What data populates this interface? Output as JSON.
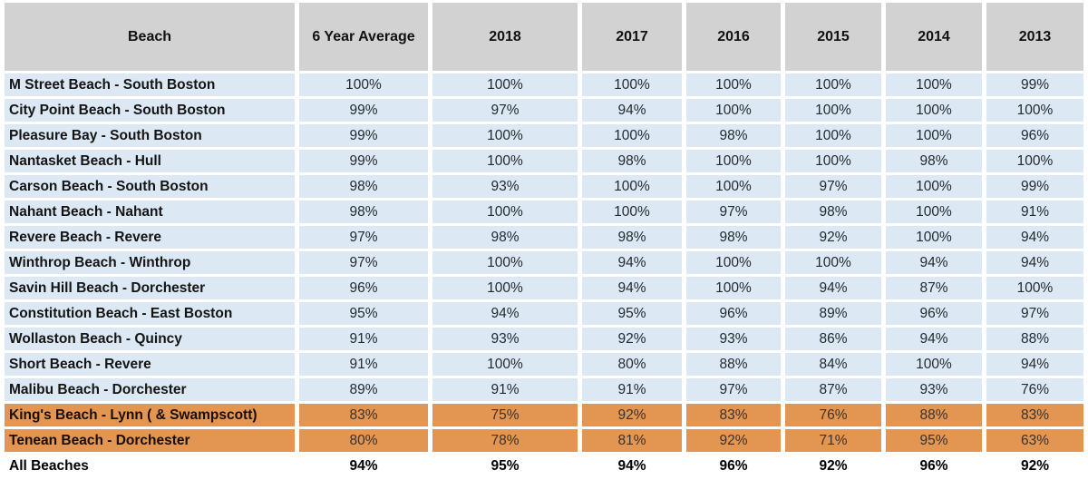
{
  "colors": {
    "header_bg": "#d2d2d2",
    "row_bg": "#dce9f4",
    "highlight_bg": "#e39552",
    "total_bg": "#ffffff"
  },
  "chart_data": {
    "type": "table",
    "columns": [
      "Beach",
      "6 Year Average",
      "2018",
      "2017",
      "2016",
      "2015",
      "2014",
      "2013"
    ],
    "rows": [
      {
        "name": "M Street Beach - South Boston",
        "values": [
          "100%",
          "100%",
          "100%",
          "100%",
          "100%",
          "100%",
          "99%"
        ],
        "highlight": false
      },
      {
        "name": "City Point Beach - South Boston",
        "values": [
          "99%",
          "97%",
          "94%",
          "100%",
          "100%",
          "100%",
          "100%"
        ],
        "highlight": false
      },
      {
        "name": "Pleasure Bay - South Boston",
        "values": [
          "99%",
          "100%",
          "100%",
          "98%",
          "100%",
          "100%",
          "96%"
        ],
        "highlight": false
      },
      {
        "name": "Nantasket Beach - Hull",
        "values": [
          "99%",
          "100%",
          "98%",
          "100%",
          "100%",
          "98%",
          "100%"
        ],
        "highlight": false
      },
      {
        "name": "Carson Beach - South Boston",
        "values": [
          "98%",
          "93%",
          "100%",
          "100%",
          "97%",
          "100%",
          "99%"
        ],
        "highlight": false
      },
      {
        "name": "Nahant Beach - Nahant",
        "values": [
          "98%",
          "100%",
          "100%",
          "97%",
          "98%",
          "100%",
          "91%"
        ],
        "highlight": false
      },
      {
        "name": "Revere Beach - Revere",
        "values": [
          "97%",
          "98%",
          "98%",
          "98%",
          "92%",
          "100%",
          "94%"
        ],
        "highlight": false
      },
      {
        "name": "Winthrop Beach - Winthrop",
        "values": [
          "97%",
          "100%",
          "94%",
          "100%",
          "100%",
          "94%",
          "94%"
        ],
        "highlight": false
      },
      {
        "name": "Savin Hill Beach - Dorchester",
        "values": [
          "96%",
          "100%",
          "94%",
          "100%",
          "94%",
          "87%",
          "100%"
        ],
        "highlight": false
      },
      {
        "name": "Constitution Beach - East Boston",
        "values": [
          "95%",
          "94%",
          "95%",
          "96%",
          "89%",
          "96%",
          "97%"
        ],
        "highlight": false
      },
      {
        "name": "Wollaston Beach - Quincy",
        "values": [
          "91%",
          "93%",
          "92%",
          "93%",
          "86%",
          "94%",
          "88%"
        ],
        "highlight": false
      },
      {
        "name": "Short Beach - Revere",
        "values": [
          "91%",
          "100%",
          "80%",
          "88%",
          "84%",
          "100%",
          "94%"
        ],
        "highlight": false
      },
      {
        "name": "Malibu Beach - Dorchester",
        "values": [
          "89%",
          "91%",
          "91%",
          "97%",
          "87%",
          "93%",
          "76%"
        ],
        "highlight": false
      },
      {
        "name": "King's Beach - Lynn ( & Swampscott)",
        "values": [
          "83%",
          "75%",
          "92%",
          "83%",
          "76%",
          "88%",
          "83%"
        ],
        "highlight": true
      },
      {
        "name": "Tenean Beach - Dorchester",
        "values": [
          "80%",
          "78%",
          "81%",
          "92%",
          "71%",
          "95%",
          "63%"
        ],
        "highlight": true
      },
      {
        "name": "All Beaches",
        "values": [
          "94%",
          "95%",
          "94%",
          "96%",
          "92%",
          "96%",
          "92%"
        ],
        "highlight": false,
        "total": true
      }
    ]
  }
}
